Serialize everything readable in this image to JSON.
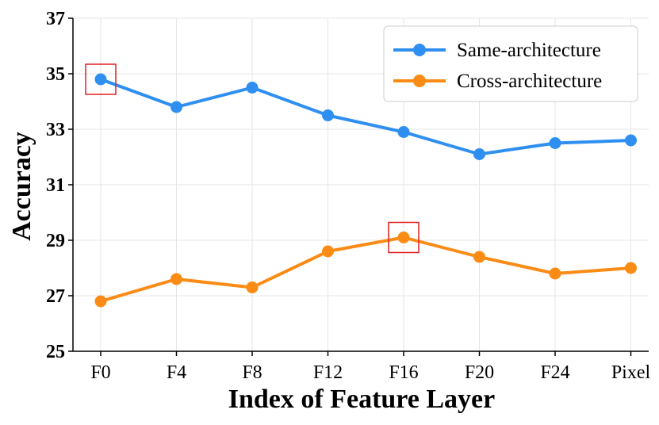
{
  "chart_data": {
    "type": "line",
    "title": "",
    "xlabel": "Index of Feature Layer",
    "ylabel": "Accuracy",
    "categories": [
      "F0",
      "F4",
      "F8",
      "F12",
      "F16",
      "F20",
      "F24",
      "Pixel"
    ],
    "ylim": [
      25,
      37
    ],
    "yticks": [
      25,
      27,
      29,
      31,
      33,
      35,
      37
    ],
    "grid": true,
    "legend_position": "top-right",
    "series": [
      {
        "name": "Same-architecture",
        "color": "#2f8ff0",
        "values": [
          34.8,
          33.8,
          34.5,
          33.5,
          32.9,
          32.1,
          32.5,
          32.6
        ]
      },
      {
        "name": "Cross-architecture",
        "color": "#fa8c16",
        "values": [
          26.8,
          27.6,
          27.3,
          28.6,
          29.1,
          28.4,
          27.8,
          28.0
        ]
      }
    ],
    "highlights": [
      {
        "series": "Same-architecture",
        "category": "F0",
        "color": "#e02020"
      },
      {
        "series": "Cross-architecture",
        "category": "F16",
        "color": "#e02020"
      }
    ]
  }
}
